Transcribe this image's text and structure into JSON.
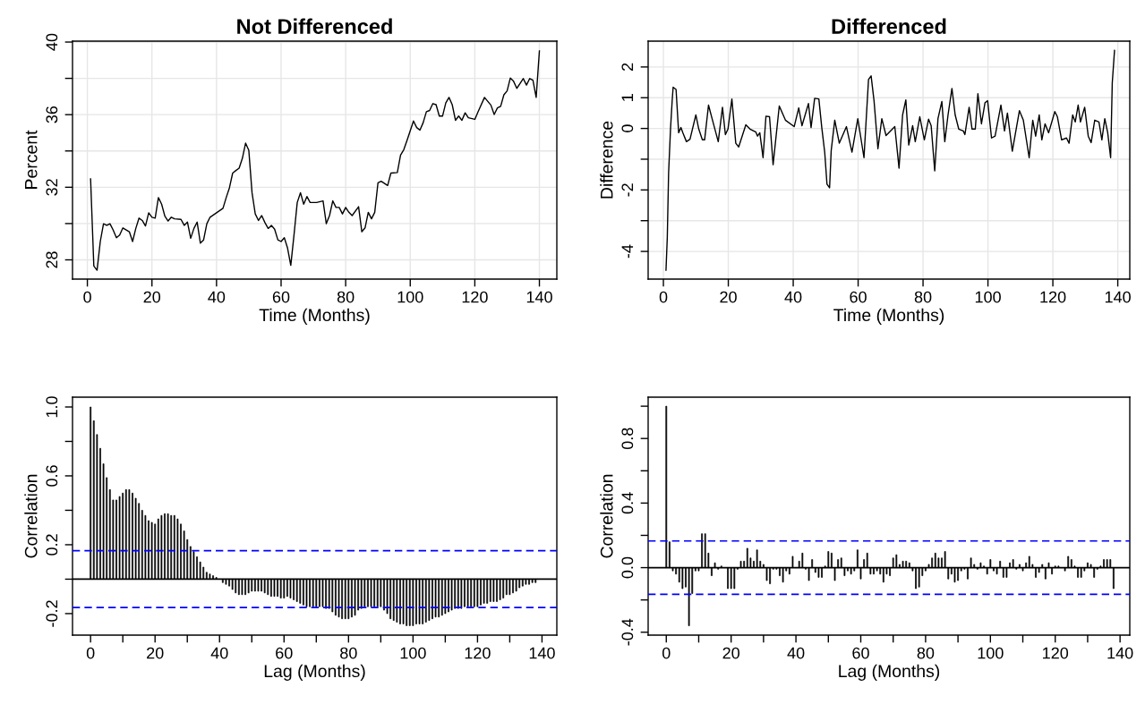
{
  "chart_data": [
    {
      "type": "line",
      "title": "Not Differenced",
      "xlabel": "Time (Months)",
      "ylabel": "Percent",
      "grid": true,
      "xlim": [
        -4.6,
        145.4
      ],
      "ylim": [
        26.94,
        40.05
      ],
      "xticks": [
        0,
        20,
        40,
        60,
        80,
        100,
        120,
        140
      ],
      "yticks": [
        28,
        {
          "value": 30,
          "label": null
        },
        32,
        {
          "value": 34,
          "label": null
        },
        36,
        {
          "value": 38,
          "label": null
        },
        40
      ],
      "series": [
        {
          "color": "#000000",
          "x": [
            1,
            2,
            3,
            4,
            5,
            6,
            7,
            8,
            9,
            10,
            11,
            13,
            14,
            15,
            16,
            17,
            18,
            19,
            20,
            21,
            22,
            23,
            24,
            25,
            26,
            27,
            29,
            30,
            31,
            32,
            33,
            34,
            35,
            36,
            37,
            38,
            40,
            42,
            43,
            44,
            45,
            46,
            47,
            48,
            49,
            50,
            51,
            52,
            53,
            54,
            55,
            56,
            57,
            58,
            59,
            60,
            61,
            62,
            63,
            64,
            65,
            66,
            67,
            68,
            69,
            71,
            73,
            74,
            75,
            76,
            77,
            78,
            79,
            80,
            81,
            82,
            84,
            85,
            86,
            87,
            88,
            89,
            90,
            91,
            93,
            94,
            96,
            97,
            98,
            99,
            101,
            102,
            103,
            104,
            105,
            106,
            107,
            108,
            109,
            110,
            111,
            112,
            113,
            114,
            115,
            116,
            117,
            118,
            120,
            121,
            123,
            125,
            126,
            127,
            128,
            129,
            130,
            131,
            132,
            133,
            134,
            135,
            136,
            137,
            138,
            139,
            140
          ],
          "values": [
            32.46,
            27.66,
            27.43,
            29.01,
            29.99,
            29.9,
            29.99,
            29.64,
            29.22,
            29.37,
            29.76,
            29.55,
            29.01,
            29.73,
            30.3,
            30.17,
            29.87,
            30.59,
            30.35,
            30.3,
            31.43,
            31.07,
            30.41,
            30.14,
            30.35,
            30.26,
            30.23,
            29.9,
            30.08,
            29.19,
            29.73,
            30.08,
            28.92,
            29.1,
            29.99,
            30.35,
            30.59,
            30.84,
            31.43,
            31.97,
            32.78,
            32.92,
            33.05,
            33.59,
            34.43,
            34.04,
            31.7,
            30.53,
            30.17,
            30.44,
            30.05,
            29.73,
            29.9,
            29.69,
            29.1,
            29.01,
            29.22,
            28.65,
            27.7,
            29.37,
            31.16,
            31.7,
            31.07,
            31.49,
            31.16,
            31.16,
            31.25,
            29.99,
            30.44,
            31.25,
            30.89,
            30.89,
            30.53,
            30.89,
            30.62,
            30.44,
            30.93,
            29.55,
            29.76,
            30.62,
            30.26,
            30.62,
            32.24,
            32.33,
            32.1,
            32.78,
            32.81,
            33.77,
            34.07,
            34.58,
            35.65,
            35.29,
            35.15,
            35.56,
            36.16,
            36.23,
            36.61,
            36.55,
            35.92,
            35.92,
            36.64,
            36.95,
            36.55,
            35.69,
            35.92,
            35.69,
            36.1,
            35.83,
            35.74,
            36.16,
            36.95,
            36.52,
            36.01,
            36.37,
            36.46,
            37.09,
            37.31,
            38.02,
            37.84,
            37.45,
            37.72,
            37.99,
            37.63,
            37.99,
            37.9,
            36.95,
            39.51
          ]
        }
      ]
    },
    {
      "type": "line",
      "title": "Differenced",
      "xlabel": "Time (Months)",
      "ylabel": "Difference",
      "grid": true,
      "xlim": [
        -4.7,
        143.7
      ],
      "ylim": [
        -4.9,
        2.84
      ],
      "xticks": [
        0,
        20,
        40,
        60,
        80,
        100,
        120,
        140
      ],
      "yticks": [
        -4,
        {
          "value": -3,
          "label": null
        },
        -2,
        {
          "value": -1,
          "label": null
        },
        0,
        1,
        2
      ],
      "series": [
        {
          "color": "#000000",
          "x": [
            0.8,
            1.2,
            1.6,
            2.2,
            2.7,
            3.0,
            3.9,
            4.7,
            5.4,
            6.0,
            7.1,
            8.2,
            10.0,
            10.9,
            12.0,
            12.7,
            13.9,
            15.0,
            16.9,
            18.2,
            19.1,
            19.9,
            21.1,
            22.3,
            23.2,
            25.4,
            26.7,
            27.8,
            28.5,
            29.0,
            29.7,
            30.7,
            31.6,
            32.7,
            33.8,
            35.7,
            37.6,
            40.3,
            41.7,
            42.7,
            44.7,
            45.5,
            46.6,
            47.9,
            48.8,
            49.7,
            50.4,
            51.2,
            51.7,
            52.8,
            54.2,
            56.4,
            58.1,
            59.9,
            61.8,
            63.2,
            64.0,
            64.9,
            66.1,
            67.3,
            68.6,
            71.3,
            72.6,
            73.7,
            74.7,
            75.6,
            76.8,
            77.6,
            79.0,
            80.4,
            81.7,
            82.5,
            83.6,
            84.6,
            85.8,
            86.7,
            87.7,
            88.9,
            89.9,
            91.0,
            92.4,
            92.9,
            94.2,
            95.1,
            96.1,
            96.9,
            98.0,
            99.1,
            99.9,
            101.1,
            102.2,
            104.0,
            105.1,
            106.0,
            107.5,
            109.7,
            110.9,
            112.7,
            113.8,
            114.7,
            115.8,
            116.6,
            117.6,
            118.7,
            120.6,
            121.4,
            122.7,
            124.2,
            125.0,
            126.1,
            126.9,
            127.8,
            128.5,
            129.8,
            130.9,
            131.8,
            132.9,
            134.2,
            135.1,
            136.0,
            136.9,
            137.8,
            138.3,
            139.0
          ],
          "values": [
            -4.61,
            -3.54,
            -1.46,
            0.0,
            0.9,
            1.34,
            1.27,
            -0.14,
            0.03,
            -0.14,
            -0.43,
            -0.35,
            0.44,
            -0.02,
            -0.37,
            -0.37,
            0.76,
            0.32,
            -0.43,
            0.69,
            -0.2,
            -0.02,
            0.96,
            -0.48,
            -0.6,
            0.12,
            -0.02,
            -0.08,
            -0.12,
            -0.25,
            -0.14,
            -0.95,
            0.4,
            0.38,
            -1.18,
            0.73,
            0.27,
            0.06,
            0.67,
            0.09,
            0.81,
            0.03,
            0.98,
            0.96,
            0.03,
            -0.77,
            -1.81,
            -1.93,
            -0.72,
            0.27,
            -0.48,
            0.06,
            -0.77,
            0.32,
            -0.95,
            1.59,
            1.71,
            0.9,
            -0.66,
            0.32,
            -0.23,
            0.06,
            -1.29,
            0.44,
            0.93,
            -0.54,
            0.09,
            -0.43,
            0.38,
            -0.37,
            0.3,
            0.09,
            -1.38,
            0.32,
            0.88,
            -0.43,
            0.44,
            1.3,
            0.44,
            -0.02,
            -0.08,
            -0.2,
            0.69,
            -0.02,
            -0.02,
            1.13,
            0.15,
            0.84,
            0.9,
            -0.31,
            -0.25,
            0.76,
            -0.08,
            0.5,
            -0.74,
            0.58,
            0.27,
            -0.95,
            0.27,
            -0.25,
            0.44,
            -0.37,
            0.15,
            -0.14,
            0.55,
            0.38,
            -0.37,
            -0.31,
            -0.48,
            0.44,
            0.21,
            0.76,
            0.21,
            0.69,
            -0.25,
            -0.46,
            0.27,
            0.21,
            -0.37,
            0.32,
            -0.14,
            -0.95,
            1.48,
            2.54
          ]
        }
      ]
    },
    {
      "type": "bar",
      "xlabel": "Lag (Months)",
      "ylabel": "Correlation",
      "xlim": [
        -5.6,
        144.6
      ],
      "ylim": [
        -0.325,
        1.057
      ],
      "xticks": [
        0,
        {
          "value": 10,
          "label": null
        },
        20,
        {
          "value": 30,
          "label": null
        },
        40,
        {
          "value": 50,
          "label": null
        },
        60,
        {
          "value": 70,
          "label": null
        },
        80,
        {
          "value": 90,
          "label": null
        },
        100,
        {
          "value": 110,
          "label": null
        },
        120,
        {
          "value": 130,
          "label": null
        },
        140
      ],
      "yticks": [
        -0.2,
        {
          "value": 0,
          "label": null
        },
        0.2,
        {
          "value": 0.4,
          "label": null
        },
        0.6,
        {
          "value": 0.8,
          "label": null
        },
        {
          "value": 1.0,
          "label": "1.0"
        }
      ],
      "ref_lines": [
        {
          "axis": "y",
          "value": 0,
          "color": "#000000",
          "line_style": "solid"
        },
        {
          "axis": "y",
          "value": 0.165,
          "color": "#0000ff",
          "line_style": "dashed"
        },
        {
          "axis": "y",
          "value": -0.165,
          "color": "#0000ff",
          "line_style": "dashed"
        }
      ],
      "x": [
        0,
        1,
        2,
        3,
        4,
        5,
        6,
        7,
        8,
        9,
        10,
        11,
        12,
        13,
        14,
        15,
        16,
        17,
        18,
        19,
        20,
        21,
        22,
        23,
        24,
        25,
        26,
        27,
        28,
        29,
        30,
        31,
        32,
        33,
        34,
        35,
        36,
        37,
        38,
        39,
        40,
        41,
        42,
        43,
        44,
        45,
        46,
        47,
        48,
        49,
        50,
        51,
        52,
        53,
        54,
        55,
        56,
        57,
        58,
        59,
        60,
        61,
        62,
        63,
        64,
        65,
        66,
        67,
        68,
        69,
        70,
        71,
        72,
        73,
        74,
        75,
        76,
        77,
        78,
        79,
        80,
        81,
        82,
        83,
        84,
        85,
        86,
        87,
        88,
        89,
        90,
        91,
        92,
        93,
        94,
        95,
        96,
        97,
        98,
        99,
        100,
        101,
        102,
        103,
        104,
        105,
        106,
        107,
        108,
        109,
        110,
        111,
        112,
        113,
        114,
        115,
        116,
        117,
        118,
        119,
        120,
        121,
        122,
        123,
        124,
        125,
        126,
        127,
        128,
        129,
        130,
        131,
        132,
        133,
        134,
        135,
        136,
        137,
        138
      ],
      "series": [
        {
          "color": "#000000",
          "values": [
            1.0,
            0.92,
            0.84,
            0.76,
            0.67,
            0.59,
            0.52,
            0.46,
            0.46,
            0.48,
            0.5,
            0.52,
            0.52,
            0.5,
            0.47,
            0.44,
            0.4,
            0.37,
            0.34,
            0.33,
            0.32,
            0.35,
            0.37,
            0.38,
            0.38,
            0.37,
            0.37,
            0.35,
            0.32,
            0.28,
            0.23,
            0.19,
            0.16,
            0.13,
            0.1,
            0.07,
            0.04,
            0.03,
            0.02,
            0.01,
            0.0,
            -0.02,
            -0.03,
            -0.04,
            -0.06,
            -0.08,
            -0.09,
            -0.09,
            -0.09,
            -0.08,
            -0.07,
            -0.07,
            -0.07,
            -0.07,
            -0.08,
            -0.09,
            -0.1,
            -0.1,
            -0.1,
            -0.11,
            -0.11,
            -0.1,
            -0.11,
            -0.12,
            -0.13,
            -0.14,
            -0.15,
            -0.16,
            -0.16,
            -0.16,
            -0.16,
            -0.16,
            -0.16,
            -0.17,
            -0.17,
            -0.19,
            -0.21,
            -0.22,
            -0.23,
            -0.23,
            -0.23,
            -0.22,
            -0.21,
            -0.18,
            -0.17,
            -0.16,
            -0.16,
            -0.16,
            -0.16,
            -0.16,
            -0.16,
            -0.18,
            -0.2,
            -0.23,
            -0.24,
            -0.25,
            -0.26,
            -0.26,
            -0.27,
            -0.27,
            -0.27,
            -0.26,
            -0.26,
            -0.26,
            -0.25,
            -0.24,
            -0.23,
            -0.22,
            -0.22,
            -0.21,
            -0.2,
            -0.19,
            -0.18,
            -0.17,
            -0.17,
            -0.17,
            -0.16,
            -0.16,
            -0.16,
            -0.16,
            -0.16,
            -0.15,
            -0.14,
            -0.14,
            -0.13,
            -0.13,
            -0.13,
            -0.12,
            -0.11,
            -0.09,
            -0.09,
            -0.08,
            -0.07,
            -0.05,
            -0.04,
            -0.03,
            -0.03,
            -0.02,
            -0.02
          ]
        }
      ]
    },
    {
      "type": "bar",
      "xlabel": "Lag (Months)",
      "ylabel": "Correlation",
      "xlim": [
        -5.6,
        143.0
      ],
      "ylim": [
        -0.418,
        1.056
      ],
      "xticks": [
        0,
        {
          "value": 10,
          "label": null
        },
        20,
        {
          "value": 30,
          "label": null
        },
        40,
        {
          "value": 50,
          "label": null
        },
        60,
        {
          "value": 70,
          "label": null
        },
        80,
        {
          "value": 90,
          "label": null
        },
        100,
        {
          "value": 110,
          "label": null
        },
        120,
        {
          "value": 130,
          "label": null
        },
        140
      ],
      "yticks": [
        -0.4,
        {
          "value": -0.2,
          "label": null
        },
        {
          "value": 0.0,
          "label": "0.0"
        },
        {
          "value": 0.2,
          "label": null
        },
        0.4,
        {
          "value": 0.6,
          "label": null
        },
        0.8,
        {
          "value": 1.0,
          "label": null
        }
      ],
      "ref_lines": [
        {
          "axis": "y",
          "value": 0,
          "color": "#000000",
          "line_style": "solid"
        },
        {
          "axis": "y",
          "value": 0.165,
          "color": "#0000ff",
          "line_style": "dashed"
        },
        {
          "axis": "y",
          "value": -0.165,
          "color": "#0000ff",
          "line_style": "dashed"
        }
      ],
      "x": [
        0,
        1,
        2,
        3,
        4,
        5,
        6,
        7,
        8,
        9,
        10,
        11,
        12,
        13,
        14,
        15,
        16,
        17,
        18,
        19,
        20,
        21,
        22,
        23,
        24,
        25,
        26,
        27,
        28,
        29,
        30,
        31,
        32,
        33,
        34,
        35,
        36,
        37,
        38,
        39,
        40,
        41,
        42,
        43,
        44,
        45,
        46,
        47,
        48,
        49,
        50,
        51,
        52,
        53,
        54,
        55,
        56,
        57,
        58,
        59,
        60,
        61,
        62,
        63,
        64,
        65,
        66,
        67,
        68,
        69,
        70,
        71,
        72,
        73,
        74,
        75,
        76,
        77,
        78,
        79,
        80,
        81,
        82,
        83,
        84,
        85,
        86,
        87,
        88,
        89,
        90,
        91,
        92,
        93,
        94,
        95,
        96,
        97,
        98,
        99,
        100,
        101,
        102,
        103,
        104,
        105,
        106,
        107,
        108,
        109,
        110,
        111,
        112,
        113,
        114,
        115,
        116,
        117,
        118,
        119,
        120,
        121,
        122,
        123,
        124,
        125,
        126,
        127,
        128,
        129,
        130,
        131,
        132,
        133,
        134,
        135,
        136,
        137,
        138
      ],
      "series": [
        {
          "color": "#000000",
          "values": [
            1.0,
            0.16,
            -0.02,
            -0.04,
            -0.09,
            -0.13,
            -0.12,
            -0.36,
            -0.16,
            -0.02,
            -0.02,
            0.21,
            0.21,
            0.09,
            -0.05,
            0.03,
            -0.01,
            0.01,
            0.0,
            -0.13,
            -0.13,
            -0.13,
            -0.01,
            0.04,
            0.04,
            0.12,
            0.06,
            0.04,
            0.11,
            0.04,
            0.02,
            -0.08,
            -0.1,
            -0.01,
            -0.01,
            -0.05,
            -0.09,
            -0.02,
            -0.04,
            0.07,
            0.0,
            0.04,
            0.09,
            -0.01,
            -0.08,
            0.05,
            -0.03,
            -0.06,
            -0.06,
            0.01,
            0.1,
            0.09,
            -0.08,
            0.05,
            0.06,
            -0.05,
            -0.02,
            -0.04,
            -0.02,
            0.11,
            -0.07,
            0.05,
            0.09,
            -0.04,
            -0.04,
            -0.02,
            -0.04,
            -0.09,
            -0.04,
            -0.05,
            0.06,
            0.08,
            0.02,
            0.04,
            0.04,
            0.03,
            -0.02,
            -0.13,
            -0.12,
            -0.05,
            -0.02,
            0.02,
            0.06,
            0.09,
            0.06,
            0.06,
            0.1,
            -0.07,
            -0.04,
            -0.09,
            -0.08,
            -0.02,
            -0.01,
            -0.07,
            0.06,
            0.02,
            -0.01,
            0.03,
            0.01,
            -0.04,
            0.05,
            -0.02,
            -0.04,
            0.04,
            -0.06,
            -0.06,
            0.03,
            0.05,
            -0.01,
            0.02,
            -0.02,
            0.03,
            0.07,
            0.02,
            -0.06,
            -0.03,
            0.02,
            -0.07,
            0.03,
            -0.04,
            0.01,
            0.01,
            0.0,
            -0.02,
            0.07,
            0.05,
            0.01,
            -0.06,
            -0.06,
            -0.02,
            0.03,
            0.02,
            -0.06,
            -0.01,
            0.01,
            0.05,
            0.05,
            0.05,
            -0.13
          ]
        }
      ]
    }
  ]
}
